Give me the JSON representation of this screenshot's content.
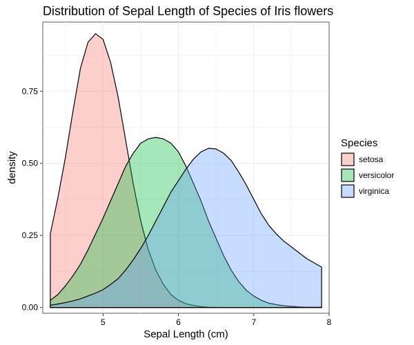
{
  "chart_data": {
    "type": "area",
    "title": "Distribution of Sepal Length of Species of Iris flowers",
    "xlabel": "Sepal Length (cm)",
    "ylabel": "density",
    "xlim": [
      4.2,
      8.0
    ],
    "ylim": [
      -0.02,
      0.99
    ],
    "xticks": [
      5,
      6,
      7,
      8
    ],
    "xtick_labels": [
      "5",
      "6",
      "7",
      "8"
    ],
    "yticks": [
      0.0,
      0.25,
      0.5,
      0.75
    ],
    "ytick_labels": [
      "0.00",
      "0.25",
      "0.50",
      "0.75"
    ],
    "grid": true,
    "legend": {
      "title": "Species",
      "position": "right"
    },
    "series": [
      {
        "name": "setosa",
        "color": "#F8766D",
        "x": [
          4.3,
          4.4,
          4.5,
          4.6,
          4.7,
          4.8,
          4.9,
          5.0,
          5.1,
          5.2,
          5.3,
          5.4,
          5.5,
          5.6,
          5.7,
          5.8,
          5.9,
          6.0,
          6.1,
          6.2,
          6.3,
          6.4,
          6.5,
          6.6,
          6.7,
          6.8,
          6.9,
          7.0,
          7.1,
          7.2,
          7.3,
          7.4,
          7.5,
          7.6,
          7.7,
          7.8,
          7.9
        ],
        "y": [
          0.255,
          0.38,
          0.52,
          0.68,
          0.83,
          0.92,
          0.95,
          0.93,
          0.85,
          0.73,
          0.58,
          0.43,
          0.3,
          0.2,
          0.13,
          0.08,
          0.045,
          0.025,
          0.013,
          0.007,
          0.003,
          0.001,
          0.0005,
          0,
          0,
          0,
          0,
          0,
          0,
          0,
          0,
          0,
          0,
          0,
          0,
          0,
          0
        ]
      },
      {
        "name": "versicolor",
        "color": "#00BA38",
        "x": [
          4.3,
          4.4,
          4.5,
          4.6,
          4.7,
          4.8,
          4.9,
          5.0,
          5.1,
          5.2,
          5.3,
          5.4,
          5.5,
          5.6,
          5.7,
          5.8,
          5.9,
          6.0,
          6.1,
          6.2,
          6.3,
          6.4,
          6.5,
          6.6,
          6.7,
          6.8,
          6.9,
          7.0,
          7.1,
          7.2,
          7.3,
          7.4,
          7.5,
          7.6,
          7.7,
          7.8,
          7.9
        ],
        "y": [
          0.025,
          0.045,
          0.075,
          0.11,
          0.15,
          0.2,
          0.255,
          0.31,
          0.37,
          0.43,
          0.49,
          0.535,
          0.57,
          0.585,
          0.59,
          0.585,
          0.57,
          0.54,
          0.49,
          0.43,
          0.37,
          0.3,
          0.24,
          0.18,
          0.13,
          0.09,
          0.06,
          0.04,
          0.025,
          0.015,
          0.01,
          0.006,
          0.004,
          0.002,
          0.001,
          0.001,
          0.001
        ]
      },
      {
        "name": "virginica",
        "color": "#619CFF",
        "x": [
          4.3,
          4.4,
          4.5,
          4.6,
          4.7,
          4.8,
          4.9,
          5.0,
          5.1,
          5.2,
          5.3,
          5.4,
          5.5,
          5.6,
          5.7,
          5.8,
          5.9,
          6.0,
          6.1,
          6.2,
          6.3,
          6.4,
          6.5,
          6.6,
          6.7,
          6.8,
          6.9,
          7.0,
          7.1,
          7.2,
          7.3,
          7.4,
          7.5,
          7.6,
          7.7,
          7.8,
          7.9
        ],
        "y": [
          0.008,
          0.012,
          0.017,
          0.023,
          0.03,
          0.04,
          0.05,
          0.062,
          0.08,
          0.1,
          0.13,
          0.165,
          0.205,
          0.25,
          0.3,
          0.35,
          0.4,
          0.44,
          0.48,
          0.515,
          0.54,
          0.552,
          0.55,
          0.535,
          0.51,
          0.47,
          0.425,
          0.375,
          0.325,
          0.285,
          0.255,
          0.23,
          0.21,
          0.19,
          0.17,
          0.155,
          0.14
        ]
      }
    ]
  }
}
